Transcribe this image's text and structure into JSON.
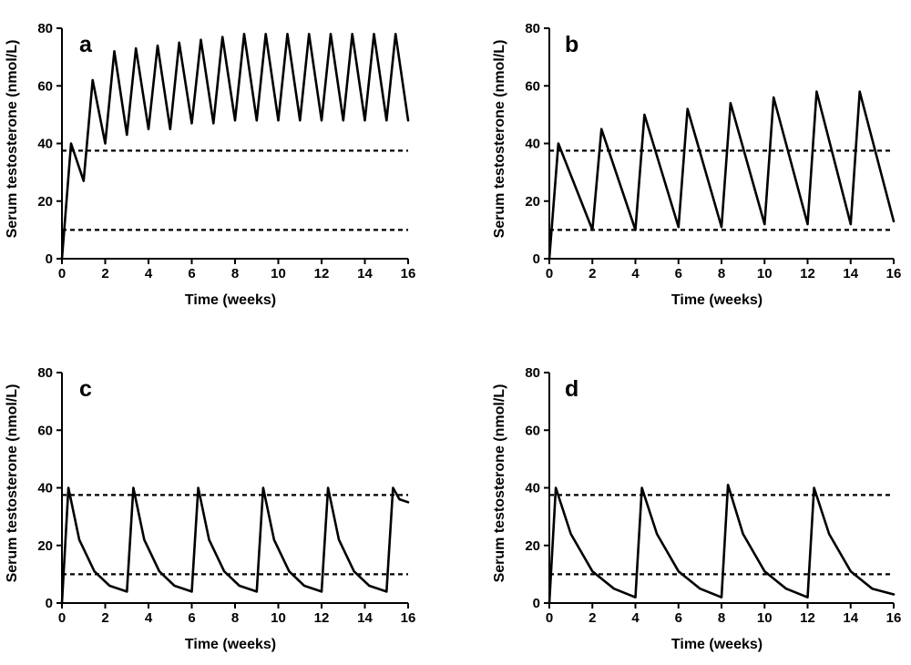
{
  "chart_data": [
    {
      "panel": "a",
      "type": "line",
      "xlabel": "Time (weeks)",
      "ylabel": "Serum testosterone (nmol/L)",
      "xlim": [
        0,
        16
      ],
      "ylim": [
        0,
        80
      ],
      "xticks": [
        "0",
        "2",
        "4",
        "6",
        "8",
        "10",
        "12",
        "14",
        "16"
      ],
      "yticks": [
        "0",
        "20",
        "40",
        "60",
        "80"
      ],
      "reference_lines": [
        37.5,
        10
      ],
      "series": [
        {
          "name": "a",
          "x": [
            0,
            0.42,
            1.0,
            1.42,
            2.0,
            2.42,
            3.0,
            3.42,
            4.0,
            4.42,
            5.0,
            5.42,
            6.0,
            6.42,
            7.0,
            7.42,
            8.0,
            8.42,
            9.0,
            9.42,
            10.0,
            10.42,
            11.0,
            11.42,
            12.0,
            12.42,
            13.0,
            13.42,
            14.0,
            14.42,
            15.0,
            15.42,
            16.0
          ],
          "y": [
            0,
            40,
            27,
            62,
            40,
            72,
            43,
            73,
            45,
            74,
            45,
            75,
            47,
            76,
            47,
            77,
            48,
            78,
            48,
            78,
            48,
            78,
            48,
            78,
            48,
            78,
            48,
            78,
            48,
            78,
            48,
            78,
            48
          ]
        }
      ]
    },
    {
      "panel": "b",
      "type": "line",
      "xlabel": "Time (weeks)",
      "ylabel": "Serum testosterone (nmol/L)",
      "xlim": [
        0,
        16
      ],
      "ylim": [
        0,
        80
      ],
      "xticks": [
        "0",
        "2",
        "4",
        "6",
        "8",
        "10",
        "12",
        "14",
        "16"
      ],
      "yticks": [
        "0",
        "20",
        "40",
        "60",
        "80"
      ],
      "reference_lines": [
        37.5,
        10
      ],
      "series": [
        {
          "name": "b",
          "x": [
            0,
            0.42,
            2.0,
            2.42,
            4.0,
            4.42,
            6.0,
            6.42,
            8.0,
            8.42,
            10.0,
            10.42,
            12.0,
            12.42,
            14.0,
            14.42,
            16.0
          ],
          "y": [
            0,
            40,
            10,
            45,
            10,
            50,
            11,
            52,
            11,
            54,
            12,
            56,
            12,
            58,
            12,
            58,
            13
          ]
        }
      ]
    },
    {
      "panel": "c",
      "type": "line",
      "xlabel": "Time (weeks)",
      "ylabel": "Serum testosterone (nmol/L)",
      "xlim": [
        0,
        16
      ],
      "ylim": [
        0,
        80
      ],
      "xticks": [
        "0",
        "2",
        "4",
        "6",
        "8",
        "10",
        "12",
        "14",
        "16"
      ],
      "yticks": [
        "0",
        "20",
        "40",
        "60",
        "80"
      ],
      "reference_lines": [
        37.5,
        10
      ],
      "series": [
        {
          "name": "c",
          "x": [
            0,
            0.3,
            0.8,
            1.5,
            2.2,
            3.0,
            3.3,
            3.8,
            4.5,
            5.2,
            6.0,
            6.3,
            6.8,
            7.5,
            8.2,
            9.0,
            9.3,
            9.8,
            10.5,
            11.2,
            12.0,
            12.3,
            12.8,
            13.5,
            14.2,
            15.0,
            15.3,
            15.6,
            16.0
          ],
          "y": [
            0,
            40,
            22,
            11,
            6,
            4,
            40,
            22,
            11,
            6,
            4,
            40,
            22,
            11,
            6,
            4,
            40,
            22,
            11,
            6,
            4,
            40,
            22,
            11,
            6,
            4,
            40,
            36,
            35
          ]
        }
      ]
    },
    {
      "panel": "d",
      "type": "line",
      "xlabel": "Time (weeks)",
      "ylabel": "Serum testosterone (nmol/L)",
      "xlim": [
        0,
        16
      ],
      "ylim": [
        0,
        80
      ],
      "xticks": [
        "0",
        "2",
        "4",
        "6",
        "8",
        "10",
        "12",
        "14",
        "16"
      ],
      "yticks": [
        "0",
        "20",
        "40",
        "60",
        "80"
      ],
      "reference_lines": [
        37.5,
        10
      ],
      "series": [
        {
          "name": "d",
          "x": [
            0,
            0.3,
            1.0,
            2.0,
            3.0,
            4.0,
            4.3,
            5.0,
            6.0,
            7.0,
            8.0,
            8.3,
            9.0,
            10.0,
            11.0,
            12.0,
            12.3,
            13.0,
            14.0,
            15.0,
            16.0
          ],
          "y": [
            0,
            40,
            24,
            11,
            5,
            2,
            40,
            24,
            11,
            5,
            2,
            41,
            24,
            11,
            5,
            2,
            40,
            24,
            11,
            5,
            3
          ]
        }
      ]
    }
  ]
}
